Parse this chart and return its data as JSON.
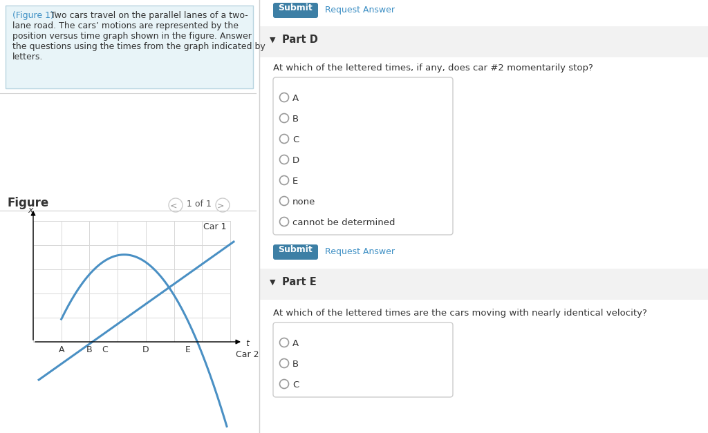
{
  "bg_color": "#ffffff",
  "left_panel_bg": "#e8f4f8",
  "panel_border_color": "#b8d4e0",
  "figure_label": "Figure",
  "nav_text": "1 of 1",
  "graph_xlabel": "t",
  "graph_ylabel": "x",
  "car1_label": "Car 1",
  "car2_label": "Car 2",
  "time_labels": [
    "A",
    "B",
    "C",
    "D",
    "E"
  ],
  "curve_color": "#4a90c4",
  "submit_bg": "#3d7fa5",
  "submit_text_color": "#ffffff",
  "link_color": "#3d8fc4",
  "part_d_header": "Part D",
  "part_d_question": "At which of the lettered times, if any, does car #2 momentarily stop?",
  "part_d_options": [
    "A",
    "B",
    "C",
    "D",
    "E",
    "none",
    "cannot be determined"
  ],
  "part_e_header": "Part E",
  "part_e_question": "At which of the lettered times are the cars moving with nearly identical velocity?",
  "part_e_options": [
    "A",
    "B",
    "C"
  ],
  "divider_color": "#d0d0d0",
  "option_box_border": "#cccccc",
  "section_header_bg": "#f2f2f2",
  "text_color": "#333333",
  "nav_circle_color": "#f0f0f0",
  "grid_color": "#d8d8d8"
}
